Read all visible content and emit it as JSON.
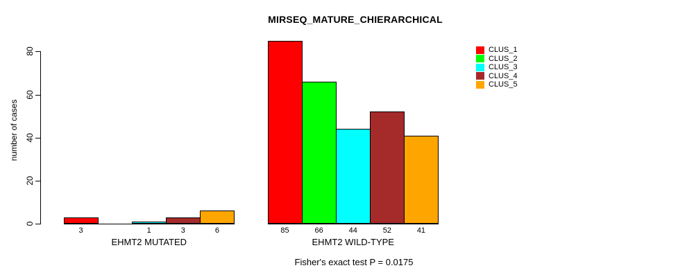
{
  "chart_data": {
    "type": "bar",
    "title": "MIRSEQ_MATURE_CHIERARCHICAL",
    "ylabel": "number of cases",
    "xlabel": "",
    "ylim": [
      0,
      88
    ],
    "yticks": [
      0,
      20,
      40,
      60,
      80
    ],
    "grid": false,
    "legend_position": "right",
    "legend": [
      {
        "label": "CLUS_1",
        "color": "#FF0000"
      },
      {
        "label": "CLUS_2",
        "color": "#00FF00"
      },
      {
        "label": "CLUS_3",
        "color": "#00FFFF"
      },
      {
        "label": "CLUS_4",
        "color": "#A52A2A"
      },
      {
        "label": "CLUS_5",
        "color": "#FFA500"
      }
    ],
    "groups": [
      {
        "label": "EHMT2 MUTATED",
        "values": [
          3,
          0,
          1,
          3,
          6
        ],
        "bar_labels": [
          "3",
          "",
          "1",
          "3",
          "6"
        ]
      },
      {
        "label": "EHMT2 WILD-TYPE",
        "values": [
          85,
          66,
          44,
          52,
          41
        ],
        "bar_labels": [
          "85",
          "66",
          "44",
          "52",
          "41"
        ]
      }
    ],
    "annotation": "Fisher's exact test P = 0.0175"
  }
}
